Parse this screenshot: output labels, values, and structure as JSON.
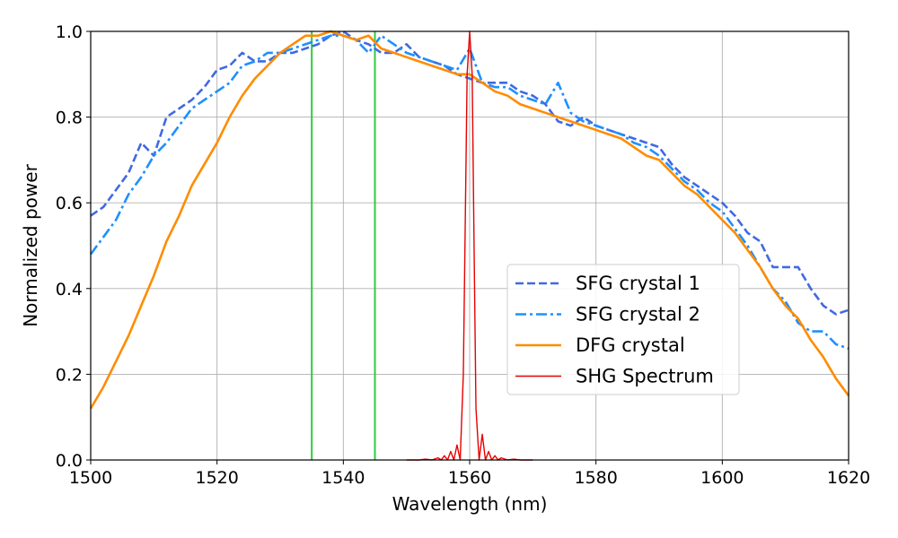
{
  "chart_data": {
    "type": "line",
    "title": "",
    "xlabel": "Wavelength (nm)",
    "ylabel": "Normalized power",
    "xlim": [
      1500,
      1620
    ],
    "ylim": [
      0.0,
      1.0
    ],
    "xticks": [
      1500,
      1520,
      1540,
      1560,
      1580,
      1600,
      1620
    ],
    "xtick_labels": [
      "1500",
      "1520",
      "1540",
      "1560",
      "1580",
      "1600",
      "1620"
    ],
    "yticks": [
      0.0,
      0.2,
      0.4,
      0.6,
      0.8,
      1.0
    ],
    "ytick_labels": [
      "0.0",
      "0.2",
      "0.4",
      "0.6",
      "0.8",
      "1.0"
    ],
    "grid": true,
    "legend_position": "center-right",
    "vertical_lines": [
      {
        "x": 1535,
        "color": "#2ecc40"
      },
      {
        "x": 1545,
        "color": "#2ecc40"
      }
    ],
    "series": [
      {
        "name": "SFG crystal 1",
        "color": "#4169e1",
        "style": "dashed",
        "x": [
          1500,
          1502,
          1504,
          1506,
          1508,
          1510,
          1512,
          1514,
          1516,
          1518,
          1520,
          1522,
          1524,
          1526,
          1528,
          1530,
          1532,
          1534,
          1536,
          1538,
          1540,
          1542,
          1544,
          1546,
          1548,
          1550,
          1552,
          1554,
          1556,
          1558,
          1560,
          1562,
          1564,
          1566,
          1568,
          1570,
          1572,
          1574,
          1576,
          1578,
          1580,
          1582,
          1584,
          1586,
          1588,
          1590,
          1592,
          1594,
          1596,
          1598,
          1600,
          1602,
          1604,
          1606,
          1608,
          1610,
          1612,
          1614,
          1616,
          1618,
          1620
        ],
        "values": [
          0.57,
          0.59,
          0.63,
          0.67,
          0.74,
          0.71,
          0.8,
          0.82,
          0.84,
          0.87,
          0.91,
          0.92,
          0.95,
          0.93,
          0.93,
          0.95,
          0.95,
          0.96,
          0.97,
          0.99,
          1.0,
          0.98,
          0.97,
          0.95,
          0.95,
          0.97,
          0.94,
          0.93,
          0.92,
          0.9,
          0.89,
          0.88,
          0.88,
          0.88,
          0.86,
          0.85,
          0.83,
          0.79,
          0.78,
          0.8,
          0.78,
          0.77,
          0.76,
          0.75,
          0.74,
          0.73,
          0.69,
          0.66,
          0.64,
          0.62,
          0.6,
          0.57,
          0.53,
          0.51,
          0.45,
          0.45,
          0.45,
          0.4,
          0.36,
          0.34,
          0.35
        ]
      },
      {
        "name": "SFG crystal 2",
        "color": "#1e90ff",
        "style": "dashdot",
        "x": [
          1500,
          1502,
          1504,
          1506,
          1508,
          1510,
          1512,
          1514,
          1516,
          1518,
          1520,
          1522,
          1524,
          1526,
          1528,
          1530,
          1532,
          1534,
          1536,
          1538,
          1540,
          1542,
          1544,
          1546,
          1548,
          1550,
          1552,
          1554,
          1556,
          1558,
          1560,
          1562,
          1564,
          1566,
          1568,
          1570,
          1572,
          1574,
          1576,
          1578,
          1580,
          1582,
          1584,
          1586,
          1588,
          1590,
          1592,
          1594,
          1596,
          1598,
          1600,
          1602,
          1604,
          1606,
          1608,
          1610,
          1612,
          1614,
          1616,
          1618,
          1620
        ],
        "values": [
          0.48,
          0.52,
          0.56,
          0.62,
          0.66,
          0.71,
          0.74,
          0.78,
          0.82,
          0.84,
          0.86,
          0.88,
          0.92,
          0.93,
          0.95,
          0.95,
          0.96,
          0.97,
          0.98,
          0.99,
          0.99,
          0.98,
          0.95,
          0.99,
          0.97,
          0.95,
          0.94,
          0.93,
          0.92,
          0.91,
          0.96,
          0.88,
          0.87,
          0.87,
          0.85,
          0.84,
          0.83,
          0.88,
          0.81,
          0.79,
          0.78,
          0.77,
          0.76,
          0.74,
          0.73,
          0.71,
          0.68,
          0.65,
          0.63,
          0.6,
          0.58,
          0.54,
          0.5,
          0.45,
          0.4,
          0.37,
          0.32,
          0.3,
          0.3,
          0.27,
          0.26
        ]
      },
      {
        "name": "DFG crystal",
        "color": "#ff8c00",
        "style": "solid",
        "x": [
          1500,
          1502,
          1504,
          1506,
          1508,
          1510,
          1512,
          1514,
          1516,
          1518,
          1520,
          1522,
          1524,
          1526,
          1528,
          1530,
          1532,
          1534,
          1536,
          1538,
          1540,
          1542,
          1544,
          1546,
          1548,
          1550,
          1552,
          1554,
          1556,
          1558,
          1560,
          1562,
          1564,
          1566,
          1568,
          1570,
          1572,
          1574,
          1576,
          1578,
          1580,
          1582,
          1584,
          1586,
          1588,
          1590,
          1592,
          1594,
          1596,
          1598,
          1600,
          1602,
          1604,
          1606,
          1608,
          1610,
          1612,
          1614,
          1616,
          1618,
          1620
        ],
        "values": [
          0.12,
          0.17,
          0.23,
          0.29,
          0.36,
          0.43,
          0.51,
          0.57,
          0.64,
          0.69,
          0.74,
          0.8,
          0.85,
          0.89,
          0.92,
          0.95,
          0.97,
          0.99,
          0.99,
          1.0,
          0.99,
          0.98,
          0.99,
          0.96,
          0.95,
          0.94,
          0.93,
          0.92,
          0.91,
          0.9,
          0.9,
          0.88,
          0.86,
          0.85,
          0.83,
          0.82,
          0.81,
          0.8,
          0.79,
          0.78,
          0.77,
          0.76,
          0.75,
          0.73,
          0.71,
          0.7,
          0.67,
          0.64,
          0.62,
          0.59,
          0.56,
          0.53,
          0.49,
          0.45,
          0.4,
          0.36,
          0.33,
          0.28,
          0.24,
          0.19,
          0.15
        ]
      },
      {
        "name": "SHG Spectrum",
        "color": "#e60000",
        "style": "solid-thin",
        "x": [
          1550,
          1552,
          1553,
          1554,
          1555,
          1555.5,
          1556,
          1556.5,
          1557,
          1557.5,
          1558,
          1558.5,
          1559,
          1559.3,
          1559.6,
          1560,
          1560.4,
          1560.7,
          1561,
          1561.5,
          1562,
          1562.5,
          1563,
          1563.5,
          1564,
          1564.5,
          1565,
          1566,
          1567,
          1568,
          1570
        ],
        "values": [
          0,
          0,
          0.002,
          0,
          0.005,
          0,
          0.01,
          0,
          0.02,
          0,
          0.035,
          0,
          0.2,
          0.55,
          0.9,
          1.0,
          0.9,
          0.5,
          0.12,
          0,
          0.06,
          0,
          0.02,
          0,
          0.01,
          0,
          0.005,
          0,
          0.002,
          0,
          0
        ]
      }
    ]
  }
}
